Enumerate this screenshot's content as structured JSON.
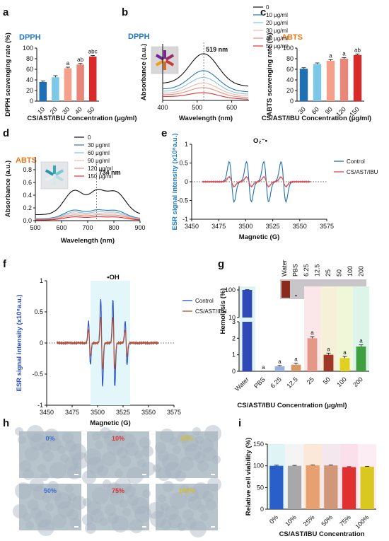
{
  "panels": {
    "a": {
      "letter": "a",
      "title": "DPPH",
      "title_color": "#1f78c8"
    },
    "b": {
      "letter": "b",
      "title": "DPPH",
      "title_color": "#1f78c8"
    },
    "c": {
      "letter": "c",
      "title": "ABTS",
      "title_color": "#f07818"
    },
    "d": {
      "letter": "d",
      "title": "ABTS",
      "title_color": "#f07818"
    },
    "e": {
      "letter": "e"
    },
    "f": {
      "letter": "f"
    },
    "g": {
      "letter": "g"
    },
    "h": {
      "letter": "h"
    },
    "i": {
      "letter": "i"
    }
  },
  "images_h": [
    {
      "label": "0%",
      "color": "#3a6fd8"
    },
    {
      "label": "10%",
      "color": "#e03030"
    },
    {
      "label": "25%",
      "color": "#d8c020"
    },
    {
      "label": "50%",
      "color": "#3a6fd8"
    },
    {
      "label": "75%",
      "color": "#e03030"
    },
    {
      "label": "100%",
      "color": "#d8c020"
    }
  ],
  "hemolysis_photo": {
    "labels": [
      "Water",
      "PBS",
      "6.25",
      "12.5",
      "25",
      "50",
      "100",
      "200"
    ]
  },
  "chart_data": [
    {
      "id": "a",
      "type": "bar",
      "categories": [
        "10",
        "20",
        "30",
        "40",
        "50"
      ],
      "values": [
        36,
        45,
        62,
        69,
        84
      ],
      "errors": [
        2,
        3,
        2,
        2,
        2
      ],
      "significance": [
        "",
        "",
        "a",
        "ab",
        "abc"
      ],
      "colors": [
        "#1f6fb4",
        "#7cc8e6",
        "#f4a08a",
        "#e9867a",
        "#d92a2a"
      ],
      "xlabel": "CS/AST/IBU Concentration (μg/ml)",
      "ylabel": "DPPH scavenging rate (%)",
      "ylim": [
        0,
        100
      ],
      "yticks": [
        0,
        20,
        40,
        60,
        80,
        100
      ]
    },
    {
      "id": "b",
      "type": "line",
      "xlabel": "Wavelength (nm)",
      "ylabel": "Absorbance (a.u.)",
      "xlim": [
        400,
        650
      ],
      "xticks": [
        400,
        500,
        600
      ],
      "annotation": "519 nm",
      "peak_x": 519,
      "series": [
        {
          "name": "0",
          "color": "#111111",
          "peak": 0.85,
          "base": 0.3
        },
        {
          "name": "10 μg/ml",
          "color": "#2a78b8",
          "peak": 0.55,
          "base": 0.2
        },
        {
          "name": "20 μg/ml",
          "color": "#82c6e0",
          "peak": 0.43,
          "base": 0.16
        },
        {
          "name": "30 μg/ml",
          "color": "#f4b8a8",
          "peak": 0.33,
          "base": 0.13
        },
        {
          "name": "40 μg/ml",
          "color": "#ec8c80",
          "peak": 0.25,
          "base": 0.1
        },
        {
          "name": "50 μg/ml",
          "color": "#e03030",
          "peak": 0.16,
          "base": 0.07
        }
      ]
    },
    {
      "id": "c",
      "type": "bar",
      "categories": [
        "30",
        "60",
        "90",
        "120",
        "150"
      ],
      "values": [
        61,
        70,
        76,
        80,
        87
      ],
      "errors": [
        2,
        2,
        2,
        2,
        2
      ],
      "significance": [
        "",
        "",
        "a",
        "a",
        "ab"
      ],
      "colors": [
        "#1f6fb4",
        "#7cc8e6",
        "#f4a08a",
        "#e9867a",
        "#d92a2a"
      ],
      "xlabel": "CS/AST/IBU Concentration (μg/ml)",
      "ylabel": "ABTS scavenging rate (%)",
      "ylim": [
        0,
        100
      ],
      "yticks": [
        0,
        20,
        40,
        60,
        80,
        100
      ]
    },
    {
      "id": "d",
      "type": "line",
      "xlabel": "Wavelength (nm)",
      "ylabel": "Absorbance (a.u.)",
      "xlim": [
        500,
        900
      ],
      "xticks": [
        500,
        600,
        700,
        800,
        900
      ],
      "ylim": [
        0,
        1.0
      ],
      "yticks": [
        0,
        0.2,
        0.4,
        0.6,
        0.8
      ],
      "annotation": "734 nm",
      "peak_x": 734,
      "series": [
        {
          "name": "0",
          "color": "#111111",
          "scale": 0.8
        },
        {
          "name": "30 μg/ml",
          "color": "#2a78b8",
          "scale": 0.28
        },
        {
          "name": "60 μg/ml",
          "color": "#82c6e0",
          "scale": 0.23
        },
        {
          "name": "90 μg/ml",
          "color": "#f4b8a8",
          "scale": 0.19
        },
        {
          "name": "120 μg/ml",
          "color": "#ec8c80",
          "scale": 0.15
        },
        {
          "name": "150 μg/ml",
          "color": "#e03030",
          "scale": 0.1
        }
      ]
    },
    {
      "id": "e",
      "type": "line",
      "title": "O₂⁻•",
      "xlabel": "Magnetic (G)",
      "ylabel": "ESR signal intensity (x10⁸a.u.)",
      "xlim": [
        3450,
        3575
      ],
      "xticks": [
        3450,
        3475,
        3500,
        3525,
        3550,
        3575
      ],
      "ylim": [
        -1,
        1
      ],
      "yticks": [
        -1,
        -0.5,
        0,
        0.5,
        1
      ],
      "series": [
        {
          "name": "Control",
          "color": "#1f6fb4",
          "amp": 0.75
        },
        {
          "name": "CS/AST/IBU",
          "color": "#e04a4a",
          "amp": 0.18
        }
      ]
    },
    {
      "id": "f",
      "type": "line",
      "title": "•OH",
      "xlabel": "Magnetic (G)",
      "ylabel": "ESR signal intensity (x10⁸a.u.)",
      "xlim": [
        3450,
        3575
      ],
      "xticks": [
        3450,
        3475,
        3500,
        3525,
        3550,
        3575
      ],
      "ylim": [
        -1,
        1
      ],
      "yticks": [
        -1,
        -0.5,
        0,
        0.5,
        1
      ],
      "series": [
        {
          "name": "Control",
          "color": "#2a4ec8",
          "amp": 1.0
        },
        {
          "name": "CS/AST/IBU",
          "color": "#b85030",
          "amp": 0.6
        }
      ]
    },
    {
      "id": "g",
      "type": "bar",
      "categories": [
        "Water",
        "PBS",
        "6.25",
        "12.5",
        "25",
        "50",
        "100",
        "200"
      ],
      "values": [
        100,
        0,
        0.3,
        0.4,
        2.0,
        1.0,
        0.8,
        1.5
      ],
      "errors": [
        2,
        0,
        0.05,
        0.1,
        0.1,
        0.1,
        0.1,
        0.1
      ],
      "significance": [
        "",
        "a",
        "a",
        "a",
        "a",
        "a",
        "a",
        "a"
      ],
      "colors": [
        "#3048b8",
        "#aaaaaa",
        "#9cb0e0",
        "#d89868",
        "#e49888",
        "#a03828",
        "#e0d020",
        "#40a040"
      ],
      "xlabel": "CS/AST/IBU Concentration (μg/ml)",
      "ylabel": "Hemolysis (%)",
      "yticks": [
        "0",
        "1",
        "2",
        "3",
        "10",
        "100"
      ]
    },
    {
      "id": "i",
      "type": "bar",
      "categories": [
        "0%",
        "10%",
        "25%",
        "50%",
        "75%",
        "100%"
      ],
      "values": [
        100,
        100,
        101,
        101,
        97,
        98
      ],
      "errors": [
        1.5,
        1,
        1,
        1,
        1,
        0.8
      ],
      "colors": [
        "#2a5ec8",
        "#a8a8a8",
        "#e8a070",
        "#d09878",
        "#e03030",
        "#d8c820"
      ],
      "xlabel": "CS/AST/IBU Concentration",
      "ylabel": "Relative cell viability (%)",
      "ylim": [
        0,
        150
      ],
      "yticks": [
        0,
        50,
        100,
        150
      ]
    }
  ]
}
